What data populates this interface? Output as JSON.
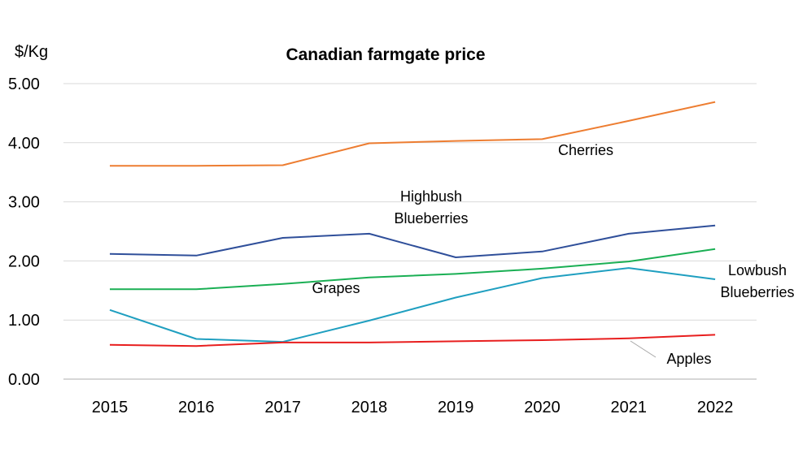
{
  "chart_data": {
    "type": "line",
    "title": "Canadian farmgate price",
    "ylabel": "$/Kg",
    "xlabel": "",
    "x": [
      "2015",
      "2016",
      "2017",
      "2018",
      "2019",
      "2020",
      "2021",
      "2022"
    ],
    "ylim": [
      0,
      5
    ],
    "yticks": [
      "0.00",
      "1.00",
      "2.00",
      "3.00",
      "4.00",
      "5.00"
    ],
    "grid": true,
    "legend": "none",
    "series": [
      {
        "name": "Cherries",
        "color": "#ED7D31",
        "values": [
          3.61,
          3.61,
          3.62,
          3.99,
          4.03,
          4.06,
          4.37,
          4.69
        ]
      },
      {
        "name": "Highbush Blueberries",
        "color": "#2F4F9A",
        "values": [
          2.12,
          2.09,
          2.39,
          2.46,
          2.06,
          2.16,
          2.46,
          2.6
        ]
      },
      {
        "name": "Grapes",
        "color": "#1AAF54",
        "values": [
          1.52,
          1.52,
          1.61,
          1.72,
          1.78,
          1.87,
          1.99,
          2.2
        ]
      },
      {
        "name": "Lowbush Blueberries",
        "color": "#1F9FC0",
        "values": [
          1.17,
          0.68,
          0.63,
          0.99,
          1.38,
          1.71,
          1.88,
          1.69
        ]
      },
      {
        "name": "Apples",
        "color": "#E81E1E",
        "values": [
          0.58,
          0.56,
          0.62,
          0.62,
          0.64,
          0.66,
          0.69,
          0.75
        ]
      }
    ],
    "annotations": [
      {
        "series": "Cherries",
        "lines": [
          "Cherries"
        ]
      },
      {
        "series": "Highbush Blueberries",
        "lines": [
          "Highbush",
          "Blueberries"
        ]
      },
      {
        "series": "Grapes",
        "lines": [
          "Grapes"
        ]
      },
      {
        "series": "Lowbush Blueberries",
        "lines": [
          "Lowbush",
          "Blueberries"
        ]
      },
      {
        "series": "Apples",
        "lines": [
          "Apples"
        ]
      }
    ]
  }
}
